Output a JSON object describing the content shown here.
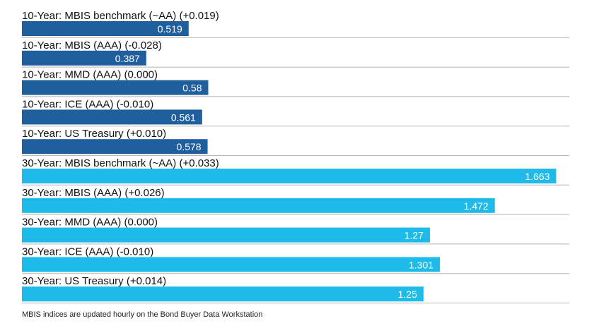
{
  "chart_data": {
    "type": "bar",
    "orientation": "horizontal",
    "xlim": [
      0,
      1.7
    ],
    "grid": false,
    "categories": [
      "10-Year: MBIS benchmark (~AA) (+0.019)",
      "10-Year: MBIS (AAA) (-0.028)",
      "10-Year: MMD (AAA) (0.000)",
      "10-Year: ICE (AAA) (-0.010)",
      "10-Year: US Treasury (+0.010)",
      "30-Year: MBIS benchmark (~AA) (+0.033)",
      "30-Year: MBIS (AAA) (+0.026)",
      "30-Year: MMD (AAA) (0.000)",
      "30-Year: ICE (AAA) (-0.010)",
      "30-Year: US Treasury (+0.014)"
    ],
    "values": [
      0.519,
      0.387,
      0.58,
      0.561,
      0.578,
      1.663,
      1.472,
      1.27,
      1.301,
      1.25
    ],
    "value_labels": [
      "0.519",
      "0.387",
      "0.58",
      "0.561",
      "0.578",
      "1.663",
      "1.472",
      "1.27",
      "1.301",
      "1.25"
    ],
    "bar_colors": [
      "#1f5f9e",
      "#1f5f9e",
      "#1f5f9e",
      "#1f5f9e",
      "#1f5f9e",
      "#1ebbea",
      "#1ebbea",
      "#1ebbea",
      "#1ebbea",
      "#1ebbea"
    ],
    "separator_color": "#b5b5b5"
  },
  "footnote": "MBIS indices are updated hourly on the Bond Buyer Data Workstation"
}
